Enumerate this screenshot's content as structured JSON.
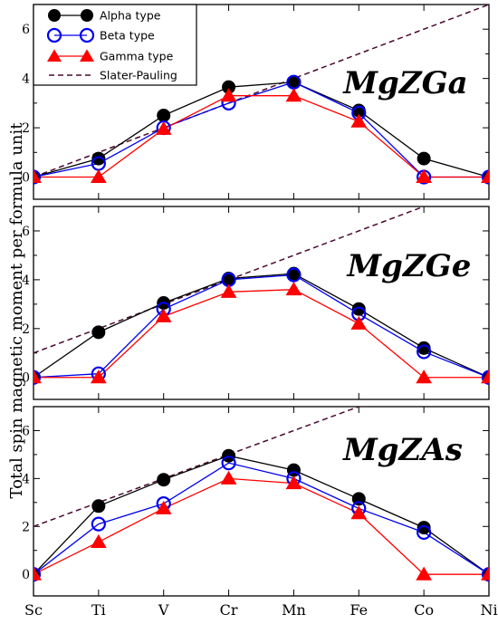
{
  "chart_data": {
    "type": "line",
    "ylabel": "Total spin magnetic moment per formula unit",
    "categories": [
      "Sc",
      "Ti",
      "V",
      "Cr",
      "Mn",
      "Fe",
      "Co",
      "Ni"
    ],
    "ylim": [
      -0.9,
      7
    ],
    "yticks": [
      0,
      2,
      4,
      6
    ],
    "legend": {
      "placement": "top-left",
      "entries": [
        "Alpha type",
        "Beta type",
        "Gamma type",
        "Slater-Pauling"
      ]
    },
    "colors": {
      "alpha": "#000000",
      "beta": "#0000ee",
      "gamma": "#ff0000",
      "slater_pauling": "#4b0a2f"
    },
    "panels": [
      {
        "title": "MgZGa",
        "slater_pauling": {
          "x": [
            "Sc",
            "Ni"
          ],
          "y": [
            0,
            7
          ]
        },
        "series": [
          {
            "name": "Alpha type",
            "values": [
              0,
              0.75,
              2.5,
              3.65,
              3.85,
              2.7,
              0.75,
              0
            ]
          },
          {
            "name": "Beta type",
            "values": [
              0,
              0.55,
              2.0,
              3.0,
              3.85,
              2.6,
              0,
              0
            ]
          },
          {
            "name": "Gamma type",
            "values": [
              0,
              0,
              1.95,
              3.3,
              3.3,
              2.25,
              0,
              0
            ]
          }
        ]
      },
      {
        "title": "MgZGe",
        "slater_pauling": {
          "x": [
            "Sc",
            "Co"
          ],
          "y": [
            1,
            7
          ]
        },
        "series": [
          {
            "name": "Alpha type",
            "values": [
              0,
              1.85,
              3.05,
              4.05,
              4.25,
              2.8,
              1.2,
              0
            ]
          },
          {
            "name": "Beta type",
            "values": [
              0,
              0.15,
              2.8,
              4.0,
              4.2,
              2.6,
              1.05,
              0
            ]
          },
          {
            "name": "Gamma type",
            "values": [
              0,
              0,
              2.5,
              3.5,
              3.6,
              2.2,
              0,
              0
            ]
          }
        ]
      },
      {
        "title": "MgZAs",
        "slater_pauling": {
          "x": [
            "Sc",
            "Fe"
          ],
          "y": [
            2,
            7
          ]
        },
        "series": [
          {
            "name": "Alpha type",
            "values": [
              0,
              2.85,
              3.95,
              4.95,
              4.35,
              3.15,
              1.95,
              0
            ]
          },
          {
            "name": "Beta type",
            "values": [
              0,
              2.1,
              2.95,
              4.65,
              4.0,
              2.75,
              1.75,
              0
            ]
          },
          {
            "name": "Gamma type",
            "values": [
              0,
              1.35,
              2.75,
              4.0,
              3.8,
              2.55,
              0,
              0
            ]
          }
        ]
      }
    ]
  }
}
